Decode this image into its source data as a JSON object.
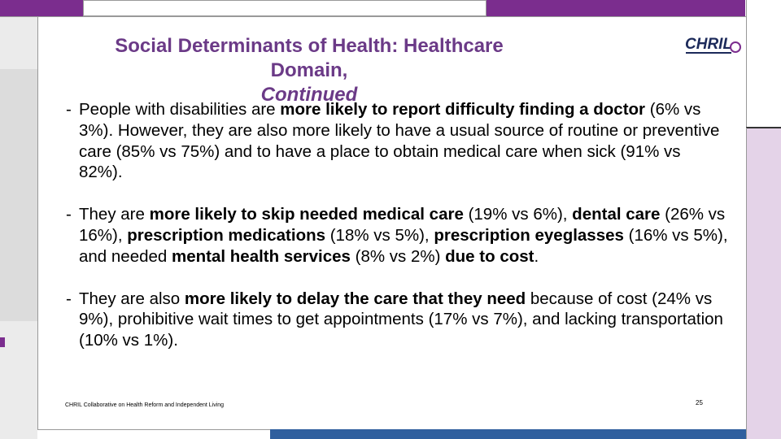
{
  "slide": {
    "title_line1": "Social Determinants of Health: Healthcare Domain,",
    "title_line2": "Continued",
    "logo_text": "CHRIL",
    "footer": "CHRIL Collaborative on Health Reform and Independent Living",
    "page_number": "25"
  },
  "bullets": [
    {
      "segments": [
        {
          "text": "People with disabilities are ",
          "bold": false
        },
        {
          "text": "more likely to report difficulty finding a doctor",
          "bold": true
        },
        {
          "text": " (6% vs 3%). However, they are also more likely to have a usual source of routine or preventive care (85% vs 75%) and to have a place to obtain medical care when sick (91% vs 82%).",
          "bold": false
        }
      ]
    },
    {
      "segments": [
        {
          "text": "They are ",
          "bold": false
        },
        {
          "text": "more likely to skip needed medical care",
          "bold": true
        },
        {
          "text": " (19% vs 6%), ",
          "bold": false
        },
        {
          "text": "dental care",
          "bold": true
        },
        {
          "text": " (26% vs 16%), ",
          "bold": false
        },
        {
          "text": "prescription medications",
          "bold": true
        },
        {
          "text": " (18% vs 5%), ",
          "bold": false
        },
        {
          "text": "prescription eyeglasses",
          "bold": true
        },
        {
          "text": " (16% vs 5%), and needed ",
          "bold": false
        },
        {
          "text": "mental health services",
          "bold": true
        },
        {
          "text": " (8% vs 2%) ",
          "bold": false
        },
        {
          "text": "due to cost",
          "bold": true
        },
        {
          "text": ".",
          "bold": false
        }
      ]
    },
    {
      "segments": [
        {
          "text": "They are also ",
          "bold": false
        },
        {
          "text": "more likely to delay the care that they need",
          "bold": true
        },
        {
          "text": " because of cost (24% vs 9%), prohibitive wait times to get appointments (17% vs 7%), and lacking transportation (10% vs 1%).",
          "bold": false
        }
      ]
    }
  ],
  "colors": {
    "title": "#6b3a87",
    "accent_purple": "#7b2d8e",
    "light_lavender": "#e4d3e8",
    "blue_band": "#2f5f9e",
    "logo_navy": "#1c2a5a"
  }
}
